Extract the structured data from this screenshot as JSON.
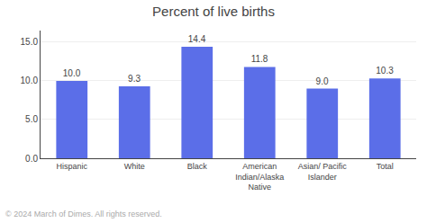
{
  "chart_data": {
    "type": "bar",
    "title": "Percent of live births",
    "categories": [
      "Hispanic",
      "White",
      "Black",
      "American\nIndian/Alaska\nNative",
      "Asian/ Pacific\nIslander",
      "Total"
    ],
    "values": [
      10.0,
      9.3,
      14.4,
      11.8,
      9.0,
      10.3
    ],
    "value_labels": [
      "10.0",
      "9.3",
      "14.4",
      "11.8",
      "9.0",
      "10.3"
    ],
    "data_labels": true,
    "color": "#5b6ee8",
    "ylim": [
      0,
      16.5
    ],
    "yticks": [
      {
        "value": 0.0,
        "label": "0.0"
      },
      {
        "value": 5.0,
        "label": "5.0"
      },
      {
        "value": 10.0,
        "label": "10.0"
      },
      {
        "value": 15.0,
        "label": "15.0"
      }
    ],
    "grid": true,
    "annotations": [
      "© 2024 March of Dimes. All rights reserved."
    ]
  }
}
